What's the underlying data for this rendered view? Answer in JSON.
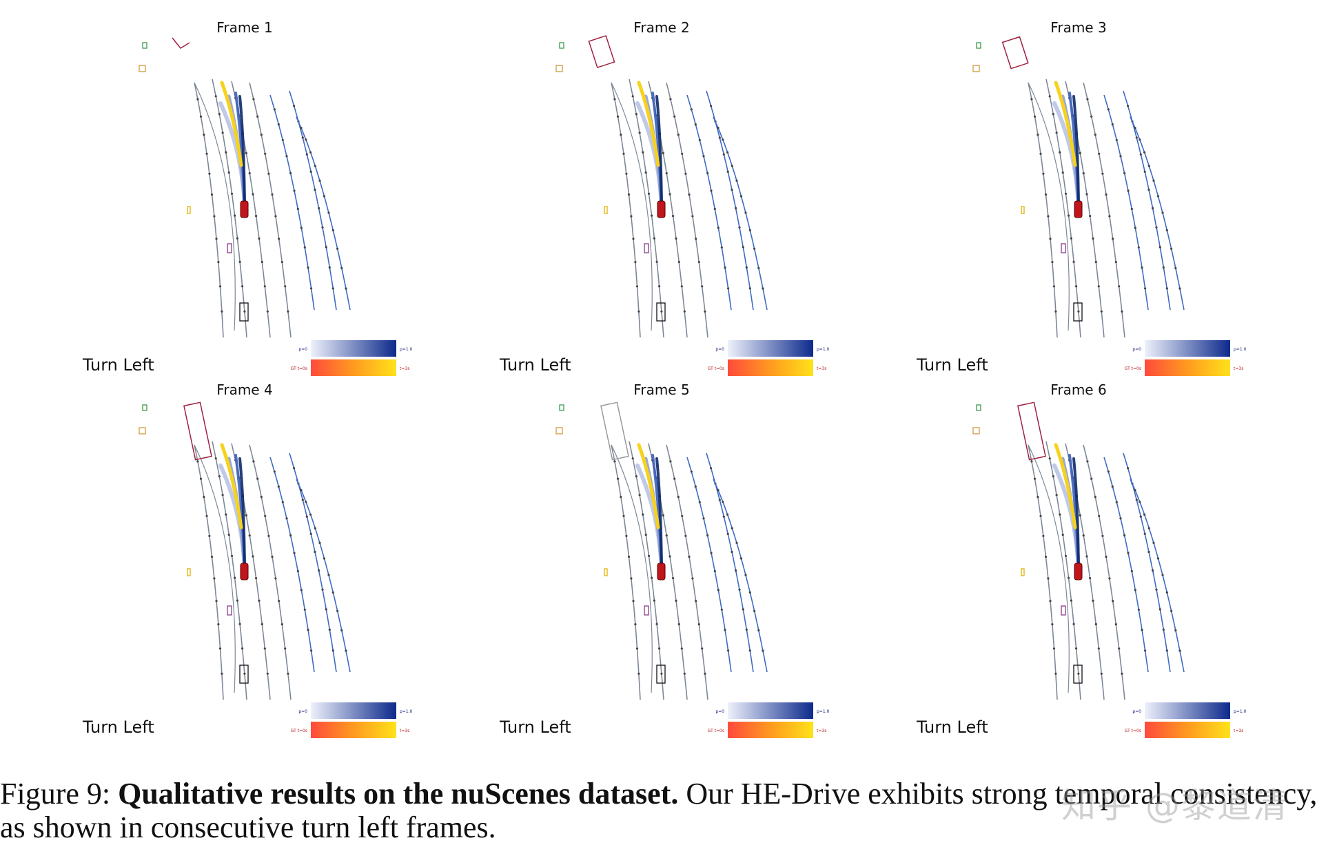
{
  "figure": {
    "panels": [
      {
        "title": "Frame 1",
        "command": "Turn Left"
      },
      {
        "title": "Frame 2",
        "command": "Turn Left"
      },
      {
        "title": "Frame 3",
        "command": "Turn Left"
      },
      {
        "title": "Frame 4",
        "command": "Turn Left"
      },
      {
        "title": "Frame 5",
        "command": "Turn Left"
      },
      {
        "title": "Frame 6",
        "command": "Turn Left"
      }
    ],
    "legend": {
      "prob_min": "p=0",
      "prob_max": "p=1.0",
      "time_min": "GT t=0s",
      "time_max": "t=3s"
    },
    "colors": {
      "lane_left": "#7d8896",
      "lane_right": "#3f6bc4",
      "ego_car": "#c0151b",
      "traj_dark": "#0d2a6b",
      "gt_yellow": "#f7d21c"
    }
  },
  "caption": {
    "label": "Figure 9:",
    "bold": "Qualitative results on the nuScenes dataset.",
    "text": "Our HE-Drive exhibits strong temporal consistency, as shown in consecutive turn left frames."
  },
  "watermark": "知乎 @黎道清"
}
